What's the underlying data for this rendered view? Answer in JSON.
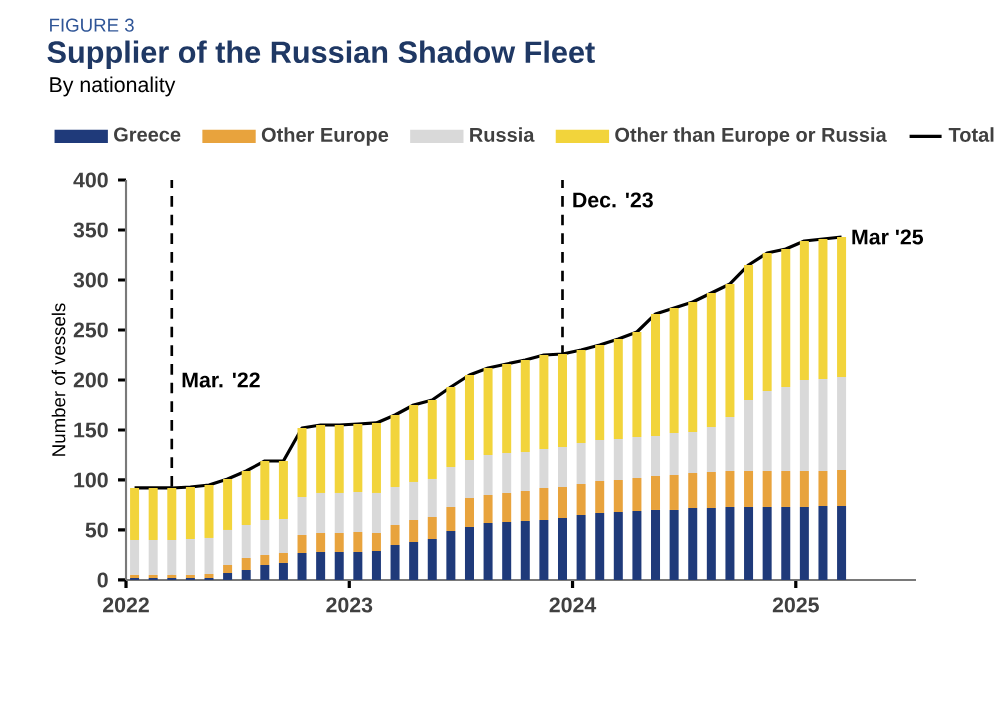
{
  "chart_data": {
    "type": "bar",
    "stacked": true,
    "title": "Supplier of the Russian Shadow Fleet",
    "subtitle": "By nationality",
    "annotations": [
      "FIGURE 3",
      {
        "text": "Mar '25",
        "x": "2025-03-15",
        "y": 343
      }
    ],
    "ylabel": "Number of vessels",
    "x": [
      "2022-01-15",
      "2022-02-15",
      "2022-03-15",
      "2022-04-15",
      "2022-05-15",
      "2022-06-15",
      "2022-07-15",
      "2022-08-15",
      "2022-09-15",
      "2022-10-15",
      "2022-11-15",
      "2022-12-15",
      "2023-01-15",
      "2023-02-15",
      "2023-03-15",
      "2023-04-15",
      "2023-05-15",
      "2023-06-15",
      "2023-07-15",
      "2023-08-15",
      "2023-09-15",
      "2023-10-15",
      "2023-11-15",
      "2023-12-15",
      "2024-01-15",
      "2024-02-15",
      "2024-03-15",
      "2024-04-15",
      "2024-05-15",
      "2024-06-15",
      "2024-07-15",
      "2024-08-15",
      "2024-09-15",
      "2024-10-15",
      "2024-11-15",
      "2024-12-15",
      "2025-01-15",
      "2025-02-15",
      "2025-03-15"
    ],
    "series": [
      {
        "name": "Greece",
        "color": "#1f3a7a",
        "values": [
          2,
          2,
          2,
          2,
          2,
          7,
          10,
          15,
          17,
          27,
          28,
          28,
          28,
          29,
          35,
          38,
          41,
          49,
          53,
          57,
          58,
          59,
          60,
          62,
          65,
          67,
          68,
          69,
          70,
          70,
          72,
          72,
          73,
          73,
          73,
          73,
          73,
          74,
          74
        ]
      },
      {
        "name": "Other Europe",
        "color": "#e8a33d",
        "values": [
          3,
          3,
          3,
          3,
          4,
          8,
          12,
          10,
          10,
          18,
          19,
          19,
          20,
          18,
          20,
          22,
          22,
          24,
          29,
          28,
          29,
          30,
          32,
          31,
          31,
          32,
          32,
          33,
          34,
          35,
          35,
          36,
          36,
          36,
          36,
          36,
          36,
          35,
          36
        ]
      },
      {
        "name": "Russia",
        "color": "#d9d9d9",
        "values": [
          35,
          35,
          35,
          36,
          36,
          35,
          33,
          35,
          34,
          38,
          40,
          40,
          40,
          40,
          38,
          38,
          38,
          40,
          38,
          40,
          40,
          39,
          39,
          40,
          41,
          41,
          41,
          41,
          40,
          42,
          41,
          45,
          54,
          71,
          80,
          84,
          91,
          92,
          93
        ]
      },
      {
        "name": "Other than Europe or Russia",
        "color": "#f2d43b",
        "values": [
          52,
          52,
          52,
          52,
          53,
          51,
          54,
          59,
          58,
          69,
          68,
          68,
          68,
          70,
          72,
          77,
          79,
          80,
          85,
          87,
          89,
          92,
          94,
          93,
          93,
          95,
          100,
          105,
          122,
          125,
          130,
          134,
          133,
          135,
          138,
          138,
          139,
          140,
          140
        ]
      },
      {
        "name": "Total",
        "type": "line",
        "color": "#000000",
        "values": [
          92,
          92,
          92,
          93,
          95,
          101,
          109,
          119,
          119,
          152,
          155,
          155,
          156,
          157,
          165,
          175,
          180,
          193,
          205,
          212,
          216,
          220,
          225,
          226,
          230,
          235,
          241,
          248,
          266,
          272,
          278,
          287,
          296,
          315,
          327,
          331,
          339,
          341,
          343
        ]
      }
    ],
    "xlim": [
      "2022-01-01",
      "2025-07-15"
    ],
    "xticks": [
      "2022",
      "2023",
      "2024",
      "2025"
    ],
    "ylim": [
      0,
      400
    ],
    "yticks": [
      0,
      50,
      100,
      150,
      200,
      250,
      300,
      350,
      400
    ],
    "ref_lines": [
      {
        "axis": "x",
        "value": "2022-03-15",
        "label": "Mar. '22",
        "color": "#000000",
        "line_style": "dashed"
      },
      {
        "axis": "x",
        "value": "2023-12-15",
        "label": "Dec. '23",
        "color": "#000000",
        "line_style": "dashed"
      }
    ],
    "legend": "top",
    "grid": false
  }
}
